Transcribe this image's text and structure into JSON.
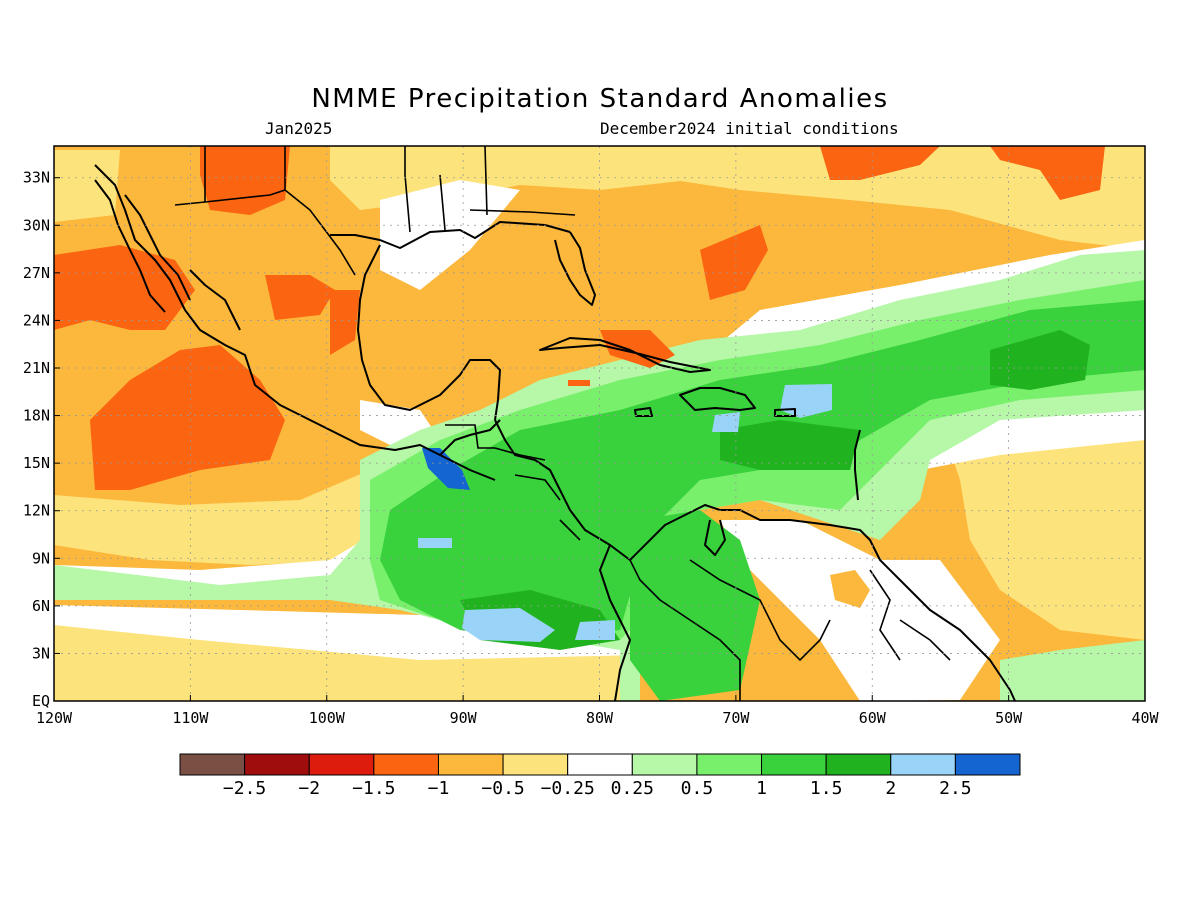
{
  "title": "NMME Precipitation Standard Anomalies",
  "subtitle_left": "Jan2025",
  "subtitle_right": "December2024 initial conditions",
  "axes": {
    "lon_range": [
      -120,
      -40
    ],
    "lat_range": [
      0,
      35
    ],
    "x_tick_labels": [
      "120W",
      "110W",
      "100W",
      "90W",
      "80W",
      "70W",
      "60W",
      "50W",
      "40W"
    ],
    "y_tick_labels": [
      "EQ",
      "3N",
      "6N",
      "9N",
      "12N",
      "15N",
      "18N",
      "21N",
      "24N",
      "27N",
      "30N",
      "33N"
    ],
    "grid": "dotted"
  },
  "colorbar": {
    "colors": [
      "#7a5045",
      "#a00d0d",
      "#dd1c0e",
      "#fb6410",
      "#fbb83c",
      "#fde37c",
      "#ffffff",
      "#b6f7a8",
      "#78f06c",
      "#39d23c",
      "#20b21f",
      "#9ad3f8",
      "#1464d2"
    ],
    "tick_labels": [
      "−2.5",
      "−2",
      "−1.5",
      "−1",
      "−0.5",
      "−0.25",
      "0.25",
      "0.5",
      "1",
      "1.5",
      "2",
      "2.5"
    ]
  },
  "palette": {
    "map_base": "#fbb83c",
    "coast": "#000000"
  }
}
